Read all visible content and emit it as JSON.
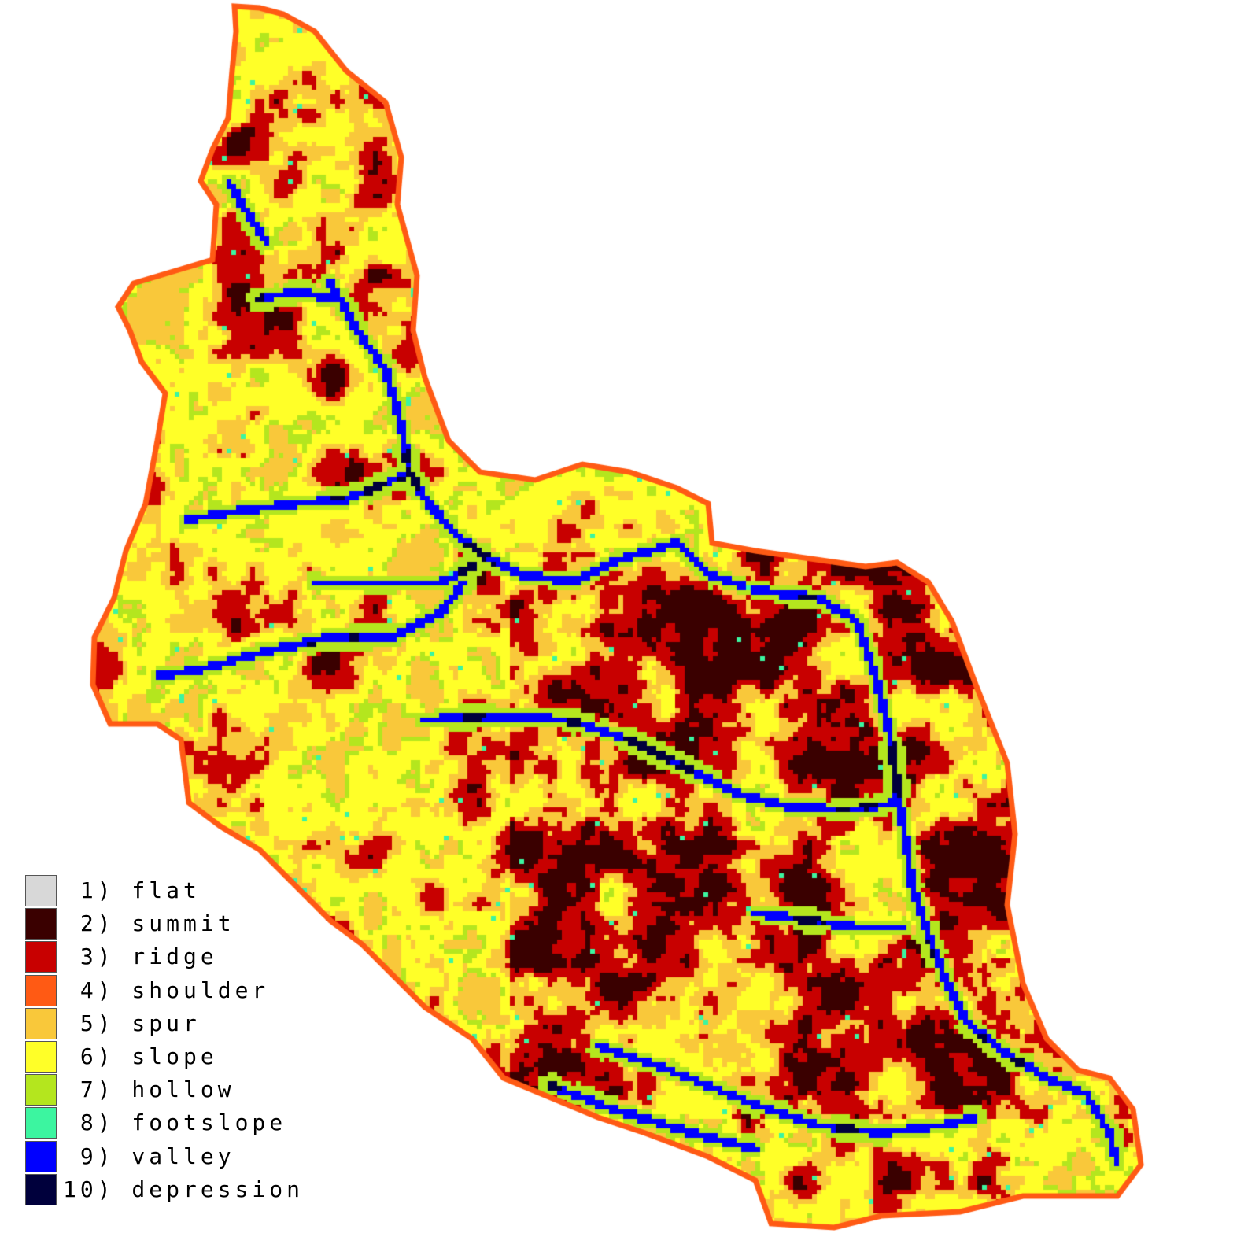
{
  "legend": {
    "items": [
      {
        "label": " 1) flat",
        "color": "#d8d8d8"
      },
      {
        "label": " 2) summit",
        "color": "#3a0000"
      },
      {
        "label": " 3) ridge",
        "color": "#c80000"
      },
      {
        "label": " 4) shoulder",
        "color": "#ff5a14"
      },
      {
        "label": " 5) spur",
        "color": "#f9c83a"
      },
      {
        "label": " 6) slope",
        "color": "#ffff28"
      },
      {
        "label": " 7) hollow",
        "color": "#b4e61e"
      },
      {
        "label": " 8) footslope",
        "color": "#3cf5a0"
      },
      {
        "label": " 9) valley",
        "color": "#0000ff"
      },
      {
        "label": "10) depression",
        "color": "#00003c"
      }
    ]
  }
}
